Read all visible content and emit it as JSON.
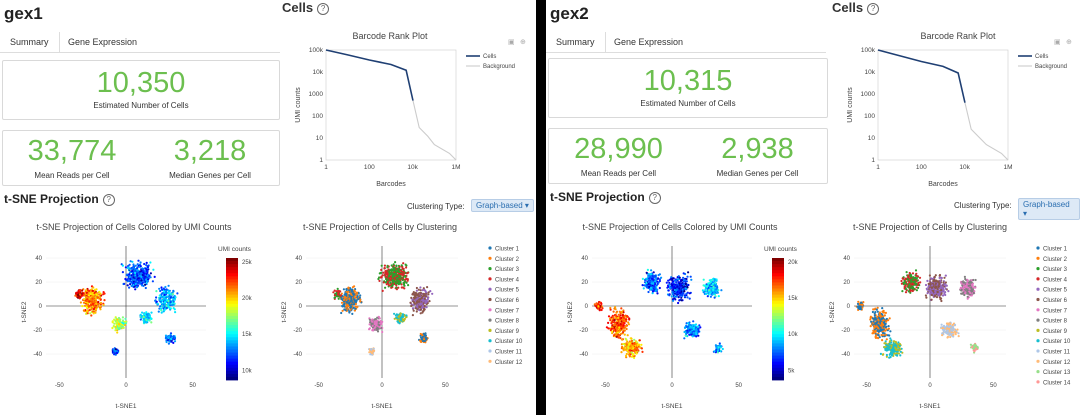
{
  "panels": [
    {
      "sample": "gex1",
      "cells_title": "Cells",
      "tabs": [
        "Summary",
        "Gene Expression"
      ],
      "est_cells": "10,350",
      "est_cells_label": "Estimated Number of Cells",
      "mean_reads": "33,774",
      "mean_reads_label": "Mean Reads per Cell",
      "median_genes": "3,218",
      "median_genes_label": "Median Genes per Cell",
      "barcode_title": "Barcode Rank Plot",
      "barcode_xlabel": "Barcodes",
      "barcode_ylabel": "UMI counts",
      "legend_cells": "Cells",
      "legend_background": "Background",
      "tsne_title": "t-SNE Projection",
      "clustering_label": "Clustering Type:",
      "clustering_value": "Graph-based",
      "umi_plot_title": "t-SNE Projection of Cells Colored by UMI Counts",
      "cluster_plot_title": "t-SNE Projection of Cells by Clustering",
      "umi_colorbar_title": "UMI counts",
      "colorbar_ticks": [
        "25k",
        "20k",
        "15k",
        "10k"
      ],
      "tsne_xlabel": "t-SNE1",
      "tsne_ylabel": "t-SNE2",
      "clusters": [
        "Cluster 1",
        "Cluster 2",
        "Cluster 3",
        "Cluster 4",
        "Cluster 5",
        "Cluster 6",
        "Cluster 7",
        "Cluster 8",
        "Cluster 9",
        "Cluster 10",
        "Cluster 11",
        "Cluster 12"
      ]
    },
    {
      "sample": "gex2",
      "cells_title": "Cells",
      "tabs": [
        "Summary",
        "Gene Expression"
      ],
      "est_cells": "10,315",
      "est_cells_label": "Estimated Number of Cells",
      "mean_reads": "28,990",
      "mean_reads_label": "Mean Reads per Cell",
      "median_genes": "2,938",
      "median_genes_label": "Median Genes per Cell",
      "barcode_title": "Barcode Rank Plot",
      "barcode_xlabel": "Barcodes",
      "barcode_ylabel": "UMI counts",
      "legend_cells": "Cells",
      "legend_background": "Background",
      "tsne_title": "t-SNE Projection",
      "clustering_label": "Clustering Type:",
      "clustering_value": "Graph-based",
      "umi_plot_title": "t-SNE Projection of Cells Colored by UMI Counts",
      "cluster_plot_title": "t-SNE Projection of Cells by Clustering",
      "umi_colorbar_title": "UMI counts",
      "colorbar_ticks": [
        "20k",
        "15k",
        "10k",
        "5k"
      ],
      "tsne_xlabel": "t-SNE1",
      "tsne_ylabel": "t-SNE2",
      "clusters": [
        "Cluster 1",
        "Cluster 2",
        "Cluster 3",
        "Cluster 4",
        "Cluster 5",
        "Cluster 6",
        "Cluster 7",
        "Cluster 8",
        "Cluster 9",
        "Cluster 10",
        "Cluster 11",
        "Cluster 12",
        "Cluster 13",
        "Cluster 14"
      ]
    }
  ],
  "chart_data": [
    {
      "type": "line",
      "title": "Barcode Rank Plot",
      "xlabel": "Barcodes",
      "ylabel": "UMI counts",
      "x_scale": "log",
      "y_scale": "log",
      "x_ticks": [
        "1",
        "100",
        "10k",
        "1M"
      ],
      "y_ticks": [
        "100k",
        "10k",
        "1000",
        "100",
        "10",
        "1"
      ],
      "legend": "top-right",
      "series": [
        {
          "name": "Cells",
          "color": "#1f3f73",
          "x": [
            1,
            10,
            100,
            1000,
            5000,
            10350
          ],
          "y": [
            100000,
            60000,
            35000,
            22000,
            12000,
            500
          ]
        },
        {
          "name": "Background",
          "color": "#cccccc",
          "x": [
            10350,
            20000,
            50000,
            100000,
            500000,
            1000000
          ],
          "y": [
            500,
            30,
            12,
            5,
            2,
            1
          ]
        }
      ]
    },
    {
      "type": "line",
      "title": "Barcode Rank Plot",
      "xlabel": "Barcodes",
      "ylabel": "UMI counts",
      "x_scale": "log",
      "y_scale": "log",
      "x_ticks": [
        "1",
        "100",
        "10k",
        "1M"
      ],
      "y_ticks": [
        "100k",
        "10k",
        "1000",
        "100",
        "10",
        "1"
      ],
      "legend": "top-right",
      "series": [
        {
          "name": "Cells",
          "color": "#1f3f73",
          "x": [
            1,
            10,
            100,
            1000,
            5000,
            10315
          ],
          "y": [
            100000,
            55000,
            30000,
            18000,
            9000,
            400
          ]
        },
        {
          "name": "Background",
          "color": "#cccccc",
          "x": [
            10315,
            20000,
            50000,
            100000,
            500000,
            1000000
          ],
          "y": [
            400,
            25,
            10,
            5,
            2,
            1
          ]
        }
      ]
    }
  ],
  "colors": {
    "accent_green": "#6cbf4f",
    "cluster_colors": [
      "#1f77b4",
      "#ff7f0e",
      "#2ca02c",
      "#d62728",
      "#9467bd",
      "#8c564b",
      "#e377c2",
      "#7f7f7f",
      "#bcbd22",
      "#17becf",
      "#aec7e8",
      "#ffbb78",
      "#98df8a",
      "#ff9896"
    ]
  },
  "icons": [
    "help-icon",
    "camera-icon",
    "zoom-icon",
    "home-icon"
  ]
}
